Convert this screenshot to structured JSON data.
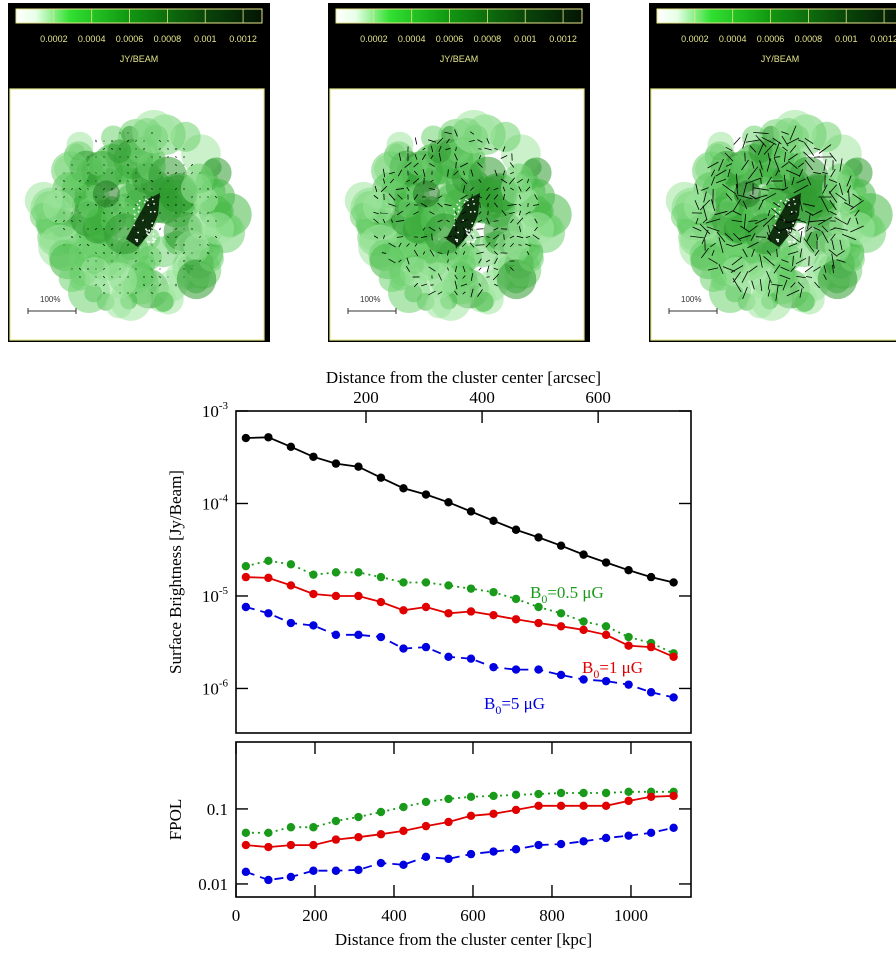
{
  "chart_data": [
    {
      "type": "image",
      "colorbar_label": "JY/BEAM",
      "clim": [
        0,
        0.0013
      ],
      "colorbar_ticks": [
        0.0002,
        0.0004,
        0.0006,
        0.0008,
        0.001,
        0.0012
      ],
      "scale_label": "100%"
    },
    {
      "type": "image",
      "colorbar_label": "JY/BEAM",
      "clim": [
        0,
        0.0013
      ],
      "colorbar_ticks": [
        0.0002,
        0.0004,
        0.0006,
        0.0008,
        0.001,
        0.0012
      ],
      "scale_label": "100%"
    },
    {
      "type": "image",
      "colorbar_label": "JY/BEAM",
      "clim": [
        0,
        0.0013
      ],
      "colorbar_ticks": [
        0.0002,
        0.0004,
        0.0006,
        0.0008,
        0.001,
        0.0012
      ],
      "scale_label": "100%"
    },
    {
      "type": "line",
      "log_y": true,
      "x2label": "Distance from the cluster center [arcsec]",
      "x2lim": [
        -24,
        760
      ],
      "x2ticks": [
        200,
        400,
        600
      ],
      "ylabel": "Surface Brightness [Jy/Beam]",
      "xlim": [
        0,
        1152
      ],
      "ylim": [
        3.3e-07,
        0.001
      ],
      "yticks": [
        {
          "value": 0.001,
          "label": "10-3"
        },
        {
          "value": 0.0001,
          "label": "10-4"
        },
        {
          "value": 1e-05,
          "label": "10-5"
        },
        {
          "value": 1e-06,
          "label": "10-6"
        }
      ],
      "x": [
        25,
        82,
        139,
        196,
        253,
        310,
        367,
        424,
        481,
        538,
        595,
        652,
        709,
        766,
        823,
        880,
        937,
        994,
        1051,
        1108
      ],
      "series": [
        {
          "color": "#000000",
          "linestyle": "solid",
          "values": [
            0.00051,
            0.00052,
            0.00041,
            0.00032,
            0.00027,
            0.00025,
            0.00019,
            0.000146,
            0.000125,
            0.000103,
            8.2e-05,
            6.5e-05,
            5.2e-05,
            4.3e-05,
            3.5e-05,
            2.8e-05,
            2.3e-05,
            1.9e-05,
            1.6e-05,
            1.4e-05
          ]
        },
        {
          "name": "B0=0.5 μG",
          "color": "#1a9a1a",
          "linestyle": "dotted",
          "values": [
            2.1e-05,
            2.4e-05,
            2.2e-05,
            1.7e-05,
            1.8e-05,
            1.8e-05,
            1.6e-05,
            1.4e-05,
            1.4e-05,
            1.3e-05,
            1.2e-05,
            1.1e-05,
            9.3e-06,
            7.6e-06,
            6.5e-06,
            5.3e-06,
            4.7e-06,
            3.6e-06,
            3.1e-06,
            2.4e-06
          ]
        },
        {
          "name": "B0=1 μG",
          "color": "#e00000",
          "linestyle": "solid",
          "values": [
            1.6e-05,
            1.57e-05,
            1.3e-05,
            1.05e-05,
            1e-05,
            1e-05,
            8.6e-06,
            7e-06,
            7.6e-06,
            6.5e-06,
            6.8e-06,
            6.2e-06,
            5.6e-06,
            5.1e-06,
            4.7e-06,
            4.3e-06,
            3.8e-06,
            2.9e-06,
            2.8e-06,
            2.2e-06
          ]
        },
        {
          "name": "B0=5 μG",
          "color": "#0000e0",
          "linestyle": "dashed",
          "values": [
            7.6e-06,
            6.5e-06,
            5.1e-06,
            4.8e-06,
            3.8e-06,
            3.8e-06,
            3.6e-06,
            2.7e-06,
            2.8e-06,
            2.2e-06,
            2.1e-06,
            1.7e-06,
            1.6e-06,
            1.6e-06,
            1.4e-06,
            1.25e-06,
            1.2e-06,
            1.1e-06,
            9.1e-07,
            8e-07
          ]
        }
      ]
    },
    {
      "type": "line",
      "log_y": true,
      "xlabel": "Distance from the cluster center [kpc]",
      "ylabel": "FPOL",
      "xlim": [
        0,
        1152
      ],
      "xticks": [
        0,
        200,
        400,
        600,
        800,
        1000
      ],
      "ylim": [
        0.0067,
        0.78
      ],
      "yticks": [
        0.01,
        0.1
      ],
      "x": [
        25,
        82,
        139,
        196,
        253,
        310,
        367,
        424,
        481,
        538,
        595,
        652,
        709,
        766,
        823,
        880,
        937,
        994,
        1051,
        1108
      ],
      "series": [
        {
          "color": "#1a9a1a",
          "linestyle": "dotted",
          "values": [
            0.048,
            0.048,
            0.057,
            0.057,
            0.069,
            0.078,
            0.091,
            0.106,
            0.124,
            0.136,
            0.145,
            0.149,
            0.154,
            0.158,
            0.163,
            0.163,
            0.163,
            0.169,
            0.169,
            0.169
          ]
        },
        {
          "color": "#e00000",
          "linestyle": "solid",
          "values": [
            0.033,
            0.031,
            0.033,
            0.033,
            0.039,
            0.042,
            0.046,
            0.051,
            0.059,
            0.067,
            0.081,
            0.086,
            0.097,
            0.11,
            0.11,
            0.11,
            0.11,
            0.128,
            0.145,
            0.149
          ]
        },
        {
          "color": "#0000e0",
          "linestyle": "dashed",
          "values": [
            0.0145,
            0.0113,
            0.0124,
            0.015,
            0.015,
            0.0154,
            0.019,
            0.018,
            0.023,
            0.0216,
            0.025,
            0.027,
            0.029,
            0.033,
            0.034,
            0.037,
            0.041,
            0.044,
            0.048,
            0.056
          ]
        }
      ]
    }
  ]
}
